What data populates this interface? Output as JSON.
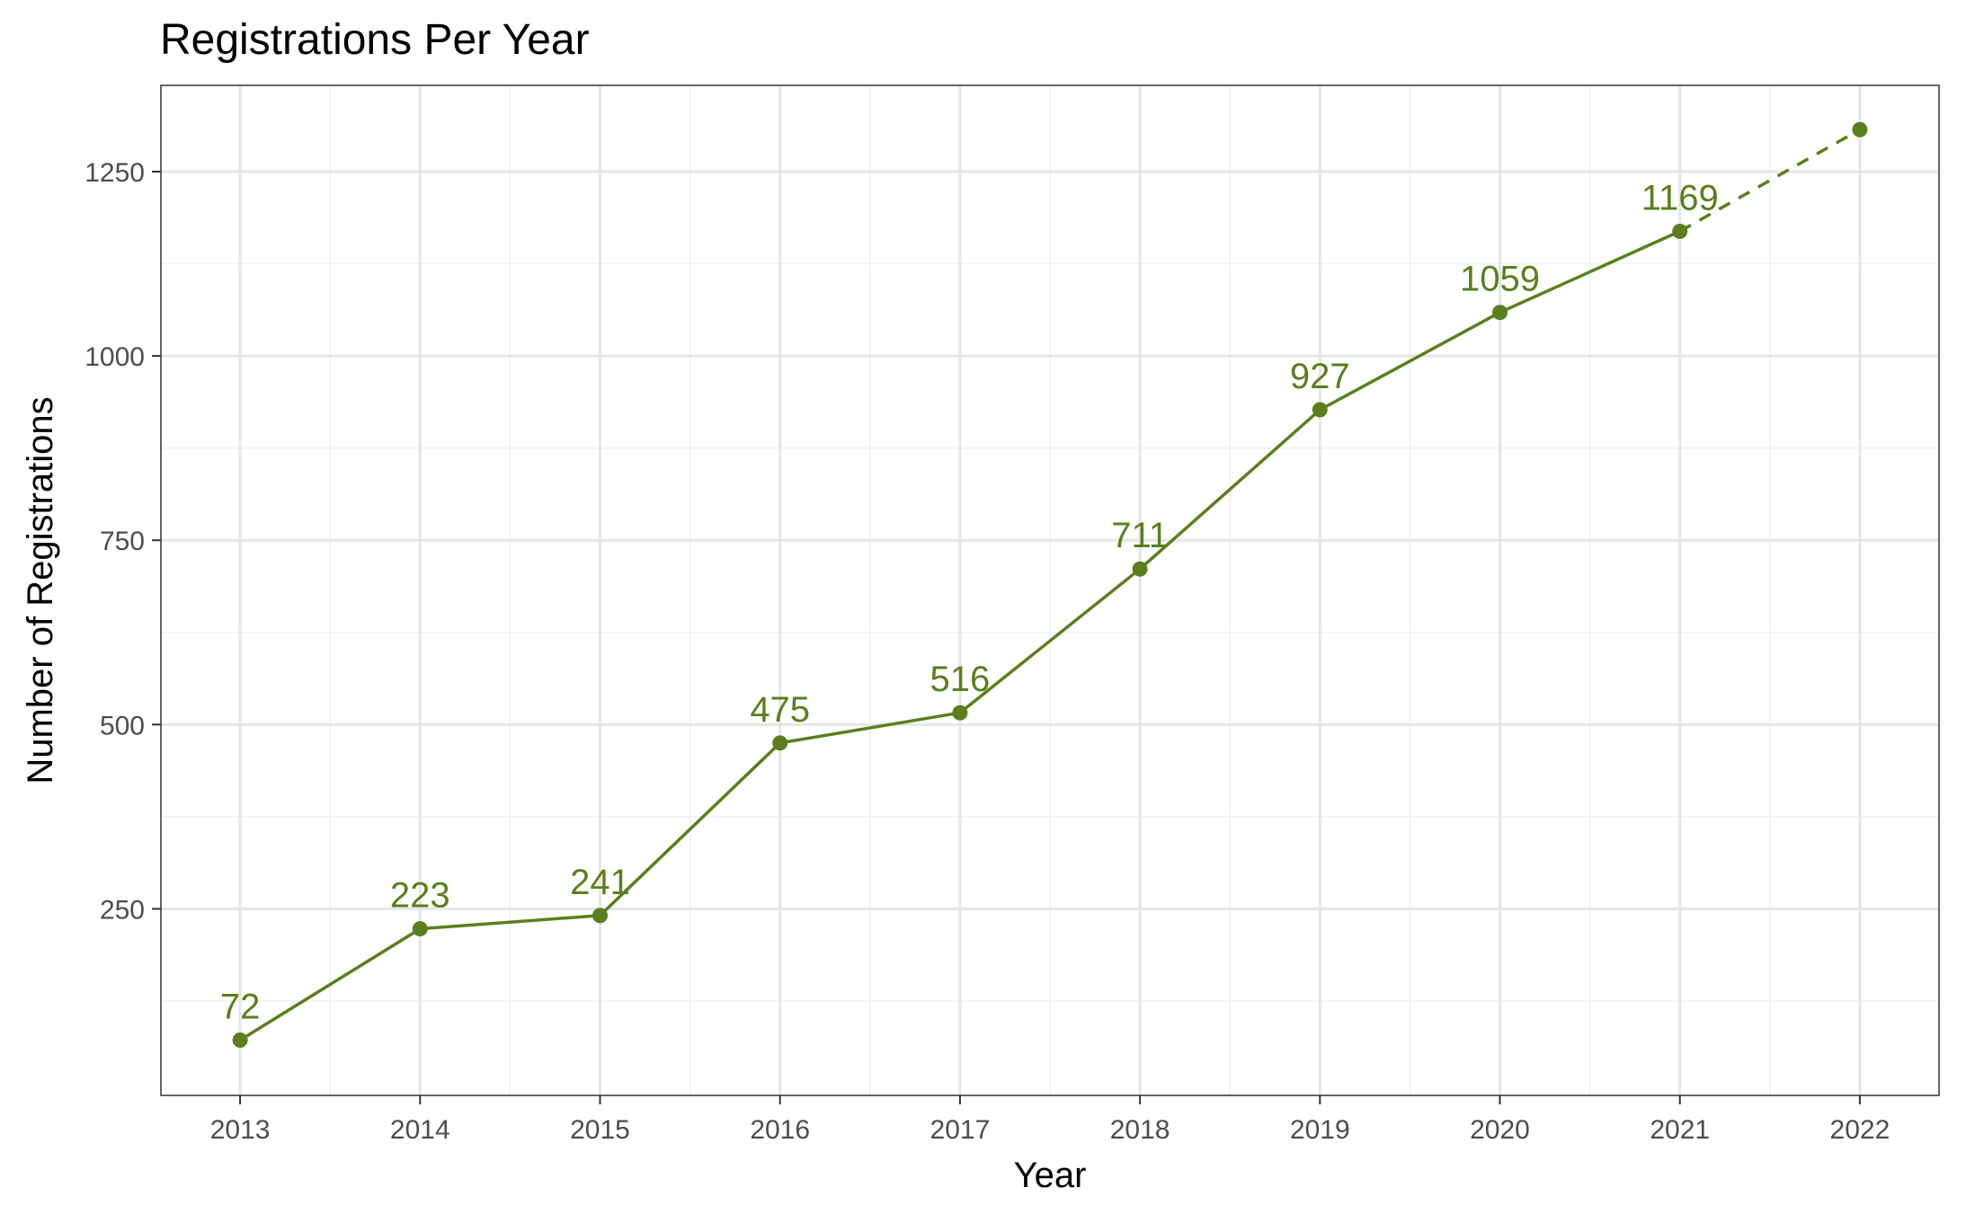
{
  "chart_data": {
    "type": "line",
    "title": "Registrations Per Year",
    "xlabel": "Year",
    "ylabel": "Number of Registrations",
    "x": [
      2013,
      2014,
      2015,
      2016,
      2017,
      2018,
      2019,
      2020,
      2021
    ],
    "series": [
      {
        "values": [
          72,
          223,
          241,
          475,
          516,
          711,
          927,
          1059,
          1169
        ],
        "labels": [
          "72",
          "223",
          "241",
          "475",
          "516",
          "711",
          "927",
          "1059",
          "1169"
        ],
        "style": "solid"
      }
    ],
    "projection": {
      "from": {
        "x": 2021,
        "y": 1169
      },
      "to": {
        "x": 2022,
        "y": 1307
      },
      "style": "dashed"
    },
    "xticks": [
      "2013",
      "2014",
      "2015",
      "2016",
      "2017",
      "2018",
      "2019",
      "2020",
      "2021",
      "2022"
    ],
    "yticks": [
      "250",
      "500",
      "750",
      "1000",
      "1250"
    ],
    "xlim": [
      2012.56,
      2022.44
    ],
    "ylim": [
      -3,
      1367
    ],
    "grid": true,
    "legend": "none",
    "colors": {
      "series": "#5a7f1c"
    }
  }
}
